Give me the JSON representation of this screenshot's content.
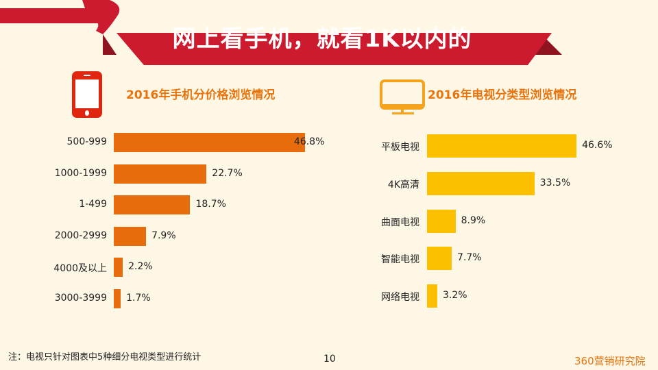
{
  "header": {
    "title": "网上看手机，就看1K以内的"
  },
  "colors": {
    "banner": "#cc1b2e",
    "phone_bar": "#e66c0c",
    "tv_bar": "#fcc000",
    "title_text": "#e8740e"
  },
  "chart_data": [
    {
      "type": "bar",
      "orientation": "horizontal",
      "title": "2016年手机分价格浏览情况",
      "icon": "smartphone-icon",
      "categories": [
        "500-999",
        "1000-1999",
        "1-499",
        "2000-2999",
        "4000及以上",
        "3000-3999"
      ],
      "values": [
        46.8,
        22.7,
        18.7,
        7.9,
        2.2,
        1.7
      ],
      "labels": [
        "46.8%",
        "22.7%",
        "18.7%",
        "7.9%",
        "2.2%",
        "1.7%"
      ],
      "grid": false
    },
    {
      "type": "bar",
      "orientation": "horizontal",
      "title": "2016年电视分类型浏览情况",
      "icon": "monitor-icon",
      "categories": [
        "平板电视",
        "4K高清",
        "曲面电视",
        "智能电视",
        "网络电视"
      ],
      "values": [
        46.6,
        33.5,
        8.9,
        7.7,
        3.2
      ],
      "labels": [
        "46.6%",
        "33.5%",
        "8.9%",
        "7.7%",
        "3.2%"
      ],
      "grid": false
    }
  ],
  "footer": {
    "note": "注：电视只针对图表中5种细分电视类型进行统计",
    "page": "10",
    "brand": "360营销研究院"
  }
}
